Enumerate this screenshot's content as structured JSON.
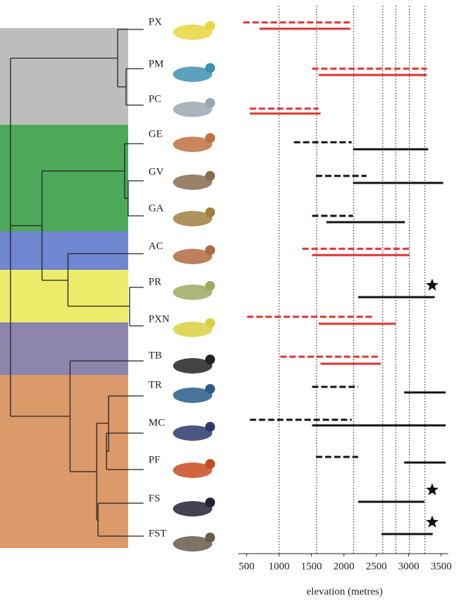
{
  "chart_data": {
    "type": "range",
    "xlabel": "elevation (metres)",
    "xlim": [
      370,
      3610
    ],
    "xticks": [
      500,
      1000,
      1500,
      2000,
      2500,
      3000,
      3500
    ],
    "reference_lines": [
      1000,
      1580,
      2150,
      2600,
      2800,
      3010,
      3250
    ],
    "rows": [
      {
        "label": "PX",
        "color": "#e03030",
        "dashed": [
          450,
          2100
        ],
        "solid": [
          700,
          2100
        ],
        "star": false
      },
      {
        "label": "PM",
        "color": "#e03030",
        "dashed": [
          1510,
          3280
        ],
        "solid": [
          1610,
          3280
        ],
        "star": false
      },
      {
        "label": "PC",
        "color": "#e03030",
        "dashed": [
          550,
          1610
        ],
        "solid": [
          550,
          1640
        ],
        "star": false
      },
      {
        "label": "GE",
        "color": "#111111",
        "dashed": [
          1230,
          2120
        ],
        "solid": [
          2140,
          3300
        ],
        "star": false
      },
      {
        "label": "GV",
        "color": "#111111",
        "dashed": [
          1570,
          2350
        ],
        "solid": [
          2140,
          3530
        ],
        "star": false
      },
      {
        "label": "GA",
        "color": "#111111",
        "dashed": [
          1510,
          2140
        ],
        "solid": [
          1730,
          2940
        ],
        "star": false
      },
      {
        "label": "AC",
        "color": "#e03030",
        "dashed": [
          1360,
          3010
        ],
        "solid": [
          1510,
          3010
        ],
        "star": false
      },
      {
        "label": "PR",
        "color": "#111111",
        "dashed": null,
        "solid": [
          2220,
          3400
        ],
        "star": true
      },
      {
        "label": "PXN",
        "color": "#e03030",
        "dashed": [
          510,
          2450
        ],
        "solid": [
          1610,
          2800
        ],
        "star": false
      },
      {
        "label": "TB",
        "color": "#e03030",
        "dashed": [
          1020,
          2540
        ],
        "solid": [
          1640,
          2570
        ],
        "star": false
      },
      {
        "label": "TR",
        "color": "#111111",
        "dashed": [
          1510,
          2220
        ],
        "solid": [
          2930,
          3570
        ],
        "star": false
      },
      {
        "label": "MC",
        "color": "#111111",
        "dashed": [
          550,
          2120
        ],
        "solid": [
          1510,
          3570
        ],
        "star": false
      },
      {
        "label": "PF",
        "color": "#111111",
        "dashed": [
          1570,
          2220
        ],
        "solid": [
          2930,
          3570
        ],
        "star": false
      },
      {
        "label": "FS",
        "color": "#111111",
        "dashed": null,
        "solid": [
          2220,
          3240
        ],
        "star": true
      },
      {
        "label": "FST",
        "color": "#111111",
        "dashed": null,
        "solid": [
          2580,
          3370
        ],
        "star": true
      }
    ]
  }
}
